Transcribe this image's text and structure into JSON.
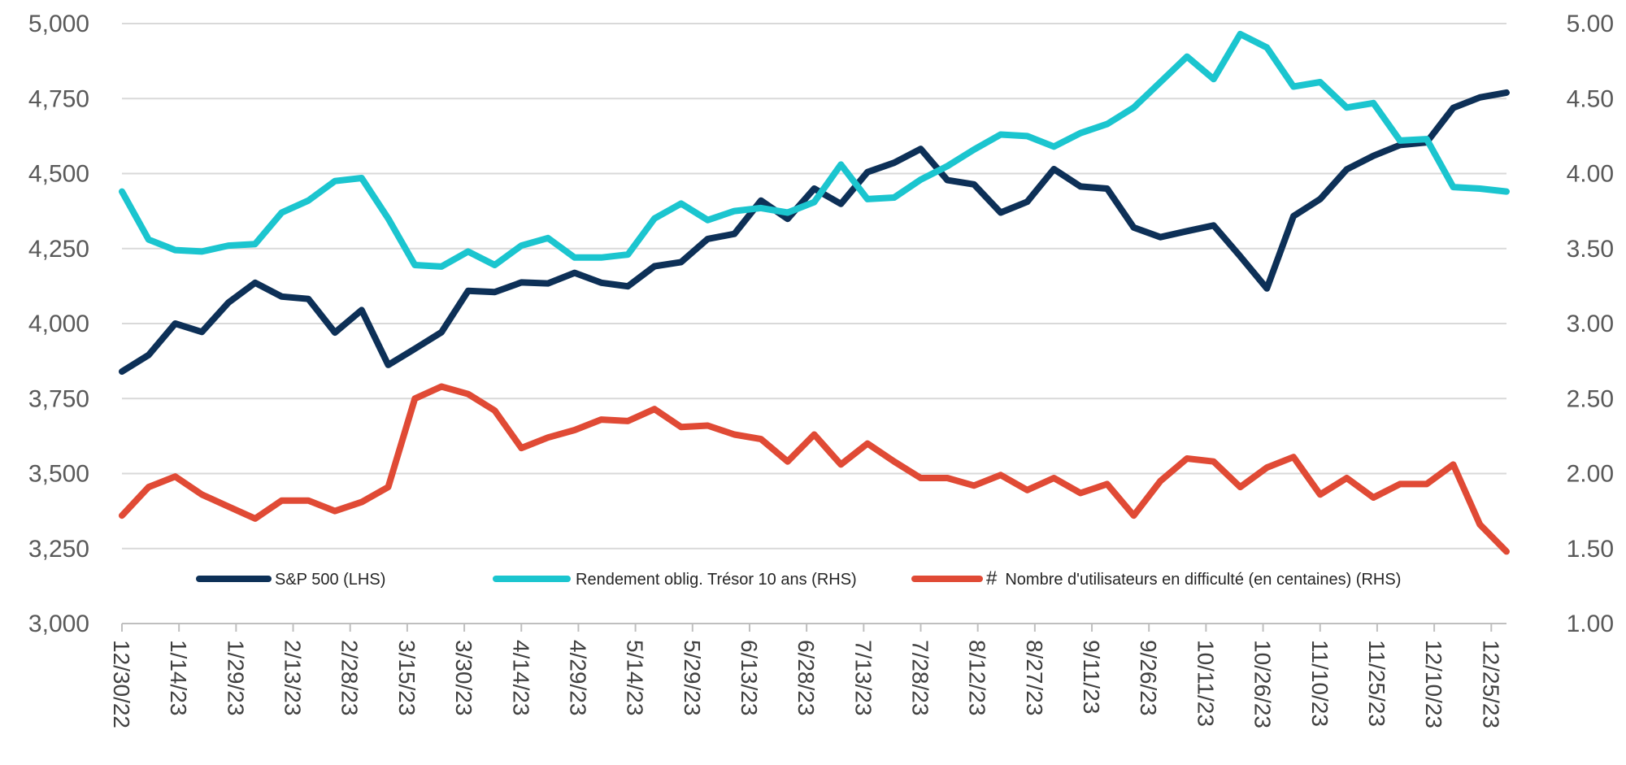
{
  "chart_data": {
    "type": "line",
    "x": [
      "12/30/22",
      "1/6/23",
      "1/13/23",
      "1/20/23",
      "1/27/23",
      "2/3/23",
      "2/10/23",
      "2/17/23",
      "2/24/23",
      "3/3/23",
      "3/10/23",
      "3/17/23",
      "3/24/23",
      "3/31/23",
      "4/7/23",
      "4/14/23",
      "4/21/23",
      "4/28/23",
      "5/5/23",
      "5/12/23",
      "5/19/23",
      "5/26/23",
      "6/2/23",
      "6/9/23",
      "6/16/23",
      "6/23/23",
      "6/30/23",
      "7/7/23",
      "7/14/23",
      "7/21/23",
      "7/28/23",
      "8/4/23",
      "8/11/23",
      "8/18/23",
      "8/25/23",
      "9/1/23",
      "9/8/23",
      "9/15/23",
      "9/22/23",
      "9/29/23",
      "10/6/23",
      "10/13/23",
      "10/20/23",
      "10/27/23",
      "11/3/23",
      "11/10/23",
      "11/17/23",
      "11/24/23",
      "12/1/23",
      "12/8/23",
      "12/15/23",
      "12/22/23",
      "12/29/23"
    ],
    "x_tick_labels": [
      "12/30/22",
      "1/14/23",
      "1/29/23",
      "2/13/23",
      "2/28/23",
      "3/15/23",
      "3/30/23",
      "4/14/23",
      "4/29/23",
      "5/14/23",
      "5/29/23",
      "6/13/23",
      "6/28/23",
      "7/13/23",
      "7/28/23",
      "8/12/23",
      "8/27/23",
      "9/11/23",
      "9/26/23",
      "10/11/23",
      "10/26/23",
      "11/10/23",
      "11/25/23",
      "12/10/23",
      "12/25/23"
    ],
    "y_left": {
      "lim": [
        3000,
        5000
      ],
      "ticks": [
        "3,000",
        "3,250",
        "3,500",
        "3,750",
        "4,000",
        "4,250",
        "4,500",
        "4,750",
        "5,000"
      ]
    },
    "y_right": {
      "lim": [
        1.0,
        5.0
      ],
      "ticks": [
        "1.00",
        "1.50",
        "2.00",
        "2.50",
        "3.00",
        "3.50",
        "4.00",
        "4.50",
        "5.00"
      ]
    },
    "grid": "horizontal",
    "legend_position": "bottom-inside",
    "series": [
      {
        "name": "S&P 500 (LHS)",
        "axis": "left",
        "color": "#0d3057",
        "values": [
          3840,
          3895,
          4000,
          3972,
          4070,
          4136,
          4090,
          4082,
          3970,
          4045,
          3862,
          3916,
          3971,
          4109,
          4105,
          4137,
          4134,
          4169,
          4136,
          4124,
          4191,
          4205,
          4282,
          4299,
          4410,
          4349,
          4450,
          4399,
          4505,
          4536,
          4582,
          4478,
          4464,
          4370,
          4406,
          4515,
          4457,
          4450,
          4320,
          4288,
          4308,
          4327,
          4224,
          4117,
          4358,
          4415,
          4514,
          4559,
          4595,
          4604,
          4719,
          4754,
          4770
        ]
      },
      {
        "name": "Rendement oblig. Trésor 10 ans (RHS)",
        "axis": "right",
        "color": "#1bc5cf",
        "values": [
          3.88,
          3.56,
          3.49,
          3.48,
          3.52,
          3.53,
          3.74,
          3.82,
          3.95,
          3.97,
          3.7,
          3.39,
          3.38,
          3.48,
          3.39,
          3.52,
          3.57,
          3.44,
          3.44,
          3.46,
          3.7,
          3.8,
          3.69,
          3.75,
          3.77,
          3.74,
          3.81,
          4.06,
          3.83,
          3.84,
          3.96,
          4.05,
          4.16,
          4.26,
          4.25,
          4.18,
          4.27,
          4.33,
          4.44,
          4.61,
          4.78,
          4.63,
          4.93,
          4.84,
          4.58,
          4.61,
          4.44,
          4.47,
          4.22,
          4.23,
          3.91,
          3.9,
          3.88
        ]
      },
      {
        "name": "Nombre d'utilisateurs en difficulté (en centaines) (RHS)",
        "axis": "right",
        "color": "#e04a35",
        "values": [
          1.72,
          1.91,
          1.98,
          1.86,
          1.78,
          1.7,
          1.82,
          1.82,
          1.75,
          1.81,
          1.91,
          2.5,
          2.58,
          2.53,
          2.42,
          2.17,
          2.24,
          2.29,
          2.36,
          2.35,
          2.43,
          2.31,
          2.32,
          2.26,
          2.23,
          2.08,
          2.26,
          2.06,
          2.2,
          2.08,
          1.97,
          1.97,
          1.92,
          1.99,
          1.89,
          1.97,
          1.87,
          1.93,
          1.72,
          1.95,
          2.1,
          2.08,
          1.91,
          2.04,
          2.11,
          1.86,
          1.97,
          1.84,
          1.93,
          1.93,
          2.06,
          1.66,
          1.48
        ]
      }
    ]
  }
}
